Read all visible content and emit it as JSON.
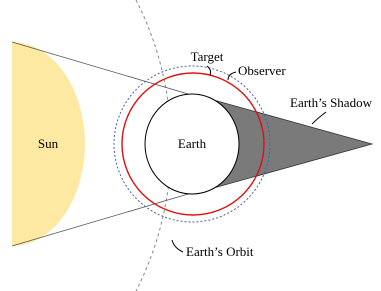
{
  "labels": {
    "sun": "Sun",
    "earth": "Earth",
    "target": "Target",
    "observer": "Observer",
    "shadow": "Earth’s Shadow",
    "orbit": "Earth’s Orbit"
  }
}
